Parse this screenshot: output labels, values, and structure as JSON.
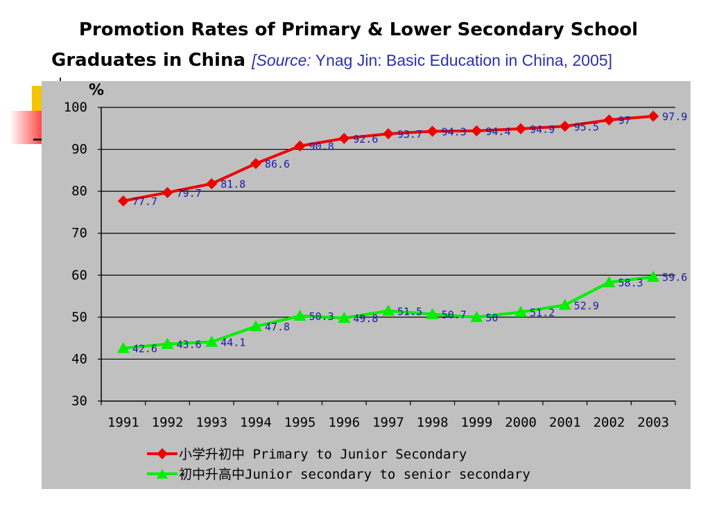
{
  "title": {
    "line1": "Promotion Rates of Primary & Lower Secondary School",
    "line2_main": "Graduates in China",
    "source_open": "[",
    "source_italic": "Source:",
    "source_rest": " Ynag Jin: Basic Education in China, 2005]"
  },
  "colors": {
    "panel_bg": "#c0c0c0",
    "primary_series": "#ee0000",
    "secondary_series": "#00ee00",
    "data_label": "#1a1aa8",
    "source_text": "#2a2fb3"
  },
  "chart_data": {
    "type": "line",
    "title": "Promotion Rates of Primary & Lower Secondary School Graduates in China",
    "ylabel": "%",
    "xlabel": "",
    "ylim": [
      30,
      100
    ],
    "yticks": [
      30,
      40,
      50,
      60,
      70,
      80,
      90,
      100
    ],
    "grid": "horizontal",
    "legend_position": "bottom",
    "categories": [
      "1991",
      "1992",
      "1993",
      "1994",
      "1995",
      "1996",
      "1997",
      "1998",
      "1999",
      "2000",
      "2001",
      "2002",
      "2003"
    ],
    "series": [
      {
        "name": "小学升初中 Primary to Junior Secondary",
        "marker": "diamond",
        "color": "#ee0000",
        "values": [
          77.7,
          79.7,
          81.8,
          86.6,
          90.8,
          92.6,
          93.7,
          94.3,
          94.4,
          94.9,
          95.5,
          97,
          97.9
        ]
      },
      {
        "name": "初中升高中Junior secondary to senior secondary",
        "marker": "triangle",
        "color": "#00ee00",
        "values": [
          42.6,
          43.6,
          44.1,
          47.8,
          50.3,
          49.8,
          51.5,
          50.7,
          50,
          51.2,
          52.9,
          58.3,
          59.6
        ]
      }
    ]
  }
}
